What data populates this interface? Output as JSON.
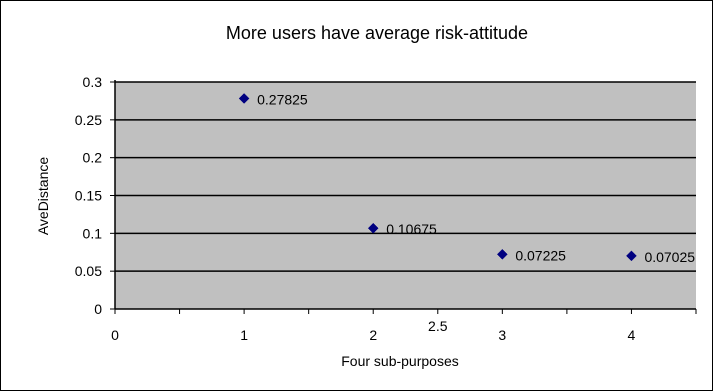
{
  "colors": {
    "plot_background": "#c0c0c0",
    "gridline": "#000000",
    "marker": "#000080",
    "frame": "#000000"
  },
  "chart_data": {
    "type": "scatter",
    "title": "More users have average risk-attitude",
    "xlabel": "Four sub-purposes",
    "ylabel": "AveDistance",
    "xlim": [
      0,
      4.5
    ],
    "ylim": [
      0,
      0.3
    ],
    "x_ticks": [
      0,
      1,
      2,
      2.5,
      3,
      4
    ],
    "x_tick_labels": [
      "0",
      "1",
      "2",
      "2.5",
      "3",
      "4"
    ],
    "y_ticks": [
      0,
      0.05,
      0.1,
      0.15,
      0.2,
      0.25,
      0.3
    ],
    "y_tick_labels": [
      "0",
      "0.05",
      "0.1",
      "0.15",
      "0.2",
      "0.25",
      "0.3"
    ],
    "grid": "horizontal",
    "marker": "diamond",
    "points": [
      {
        "x": 1,
        "y": 0.27825,
        "label": "0.27825"
      },
      {
        "x": 2,
        "y": 0.10675,
        "label": "0.10675"
      },
      {
        "x": 3,
        "y": 0.07225,
        "label": "0.07225"
      },
      {
        "x": 4,
        "y": 0.07025,
        "label": "0.07025"
      }
    ]
  }
}
